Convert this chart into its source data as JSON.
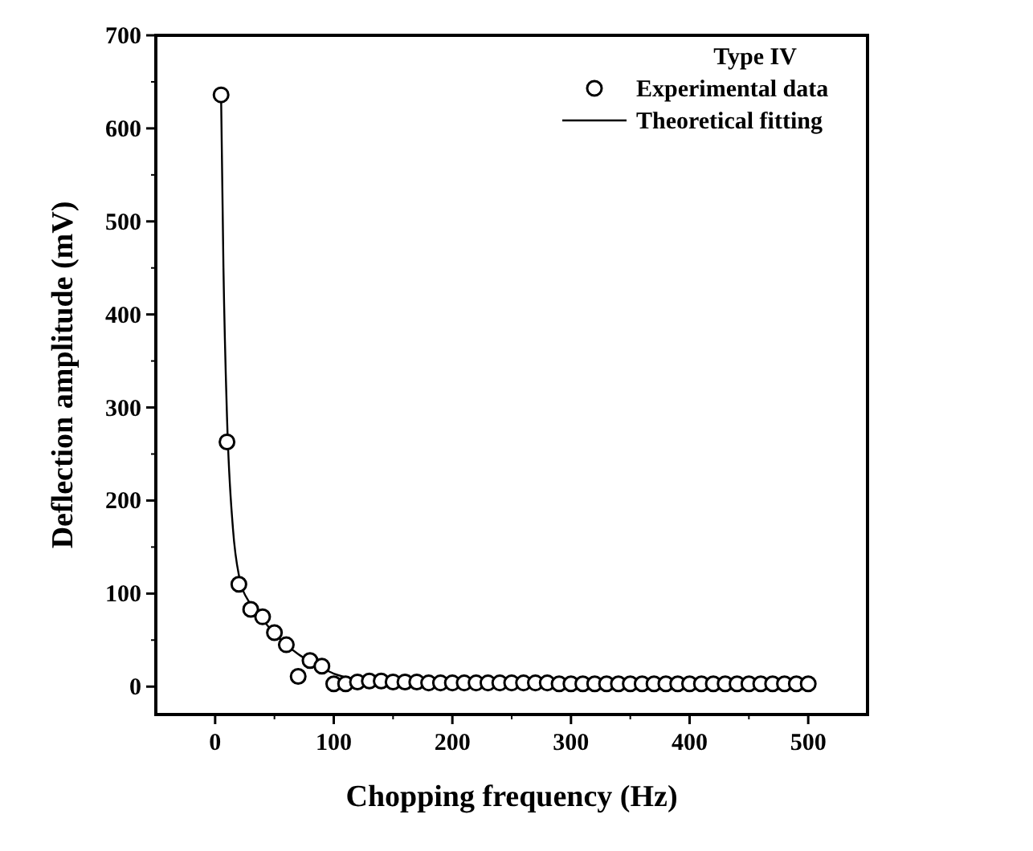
{
  "chart_data": {
    "type": "scatter",
    "xlabel": "Chopping frequency (Hz)",
    "ylabel": "Deflection amplitude (mV)",
    "legend_title": "Type IV",
    "legend": "top right",
    "xlim": [
      -50,
      550
    ],
    "ylim": [
      -30,
      700
    ],
    "xticks": [
      0,
      100,
      200,
      300,
      400,
      500
    ],
    "yticks": [
      0,
      100,
      200,
      300,
      400,
      500,
      600,
      700
    ],
    "grid": false,
    "series": [
      {
        "name": "Experimental data",
        "marker": "circle",
        "color": "#000000",
        "x": [
          5,
          10,
          20,
          30,
          40,
          50,
          60,
          70,
          80,
          90,
          100,
          110,
          120,
          130,
          140,
          150,
          160,
          170,
          180,
          190,
          200,
          210,
          220,
          230,
          240,
          250,
          260,
          270,
          280,
          290,
          300,
          310,
          320,
          330,
          340,
          350,
          360,
          370,
          380,
          390,
          400,
          410,
          420,
          430,
          440,
          450,
          460,
          470,
          480,
          490,
          500
        ],
        "values": [
          636,
          263,
          110,
          83,
          75,
          58,
          45,
          11,
          28,
          22,
          3,
          3,
          5,
          6,
          6,
          5,
          5,
          5,
          4,
          4,
          4,
          4,
          4,
          4,
          4,
          4,
          4,
          4,
          4,
          3,
          3,
          3,
          3,
          3,
          3,
          3,
          3,
          3,
          3,
          3,
          3,
          3,
          3,
          3,
          3,
          3,
          3,
          3,
          3,
          3,
          3
        ]
      },
      {
        "name": "Theoretical fitting",
        "type": "line",
        "line_style": "solid",
        "color": "#000000",
        "x": [
          5,
          7,
          10,
          15,
          20,
          30,
          40,
          50,
          60,
          70,
          80,
          90,
          100,
          120,
          150,
          200,
          300,
          500
        ],
        "values": [
          636,
          450,
          290,
          170,
          120,
          88,
          72,
          57,
          45,
          35,
          27,
          20,
          14,
          8,
          5,
          4,
          3,
          2
        ]
      }
    ]
  }
}
